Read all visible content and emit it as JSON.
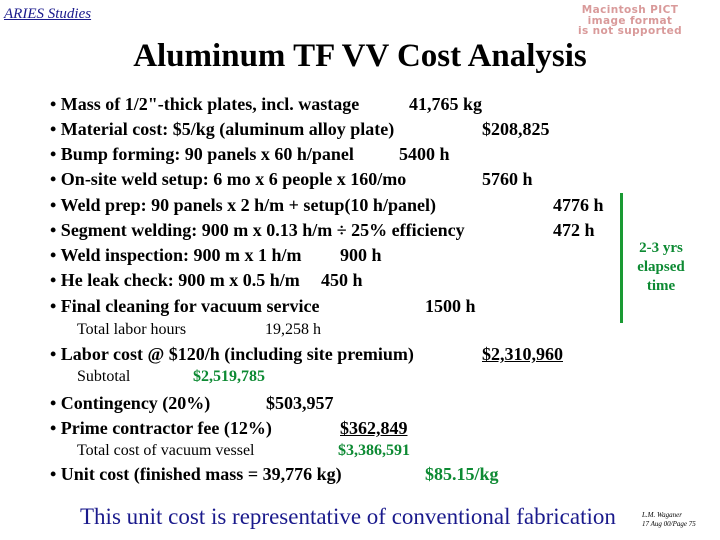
{
  "header": "ARIES Studies",
  "pict_notice": [
    "Macintosh PICT",
    "image format",
    "is not supported"
  ],
  "title": "Aluminum TF VV Cost Analysis",
  "items": [
    {
      "label": "• Mass of 1/2\"-thick plates, incl. wastage",
      "value": "41,765 kg"
    },
    {
      "label": "• Material cost: $5/kg (aluminum alloy plate)",
      "value": "$208,825"
    },
    {
      "label": "• Bump forming: 90 panels x 60 h/panel",
      "value": "5400 h"
    },
    {
      "label": "• On-site weld setup: 6 mo x 6 people x 160/mo",
      "value": "5760 h"
    },
    {
      "label": "• Weld prep: 90 panels x 2 h/m + setup(10 h/panel)",
      "value": "4776 h"
    },
    {
      "label": "• Segment welding: 900 m x 0.13 h/m ÷ 25% efficiency",
      "value": "472 h"
    },
    {
      "label": "• Weld inspection: 900 m x 1 h/m",
      "value": "900 h"
    },
    {
      "label": "• He leak check: 900 m x 0.5 h/m",
      "value": "450 h"
    },
    {
      "label": "• Final cleaning for vacuum service",
      "value": "1500 h"
    }
  ],
  "total_labor": {
    "label": "Total labor hours",
    "value": "19,258 h"
  },
  "labor_cost": {
    "label": "• Labor cost @ $120/h (including site premium)",
    "value": "$2,310,960"
  },
  "subtotal": {
    "label": "Subtotal",
    "value": "$2,519,785"
  },
  "contingency": {
    "label": "• Contingency (20%)",
    "value": "$503,957"
  },
  "prime_fee": {
    "label": "• Prime contractor fee (12%)",
    "value": "$362,849"
  },
  "total_cost": {
    "label": "Total cost of vacuum vessel",
    "value": "$3,386,591"
  },
  "unit_cost": {
    "label": "• Unit cost (finished mass = 39,776 kg)",
    "value": "$85.15/kg"
  },
  "elapsed_note": [
    "2-3 yrs",
    "elapsed",
    "time"
  ],
  "footer": "This unit cost is representative of conventional fabrication",
  "author": [
    "L.M. Waganer",
    "17 Aug 00/Page 75"
  ],
  "colors": {
    "header": "#1a1a8c",
    "green": "#0d8a33",
    "footer": "#1a1a8c",
    "pict": "#d99a9a"
  }
}
